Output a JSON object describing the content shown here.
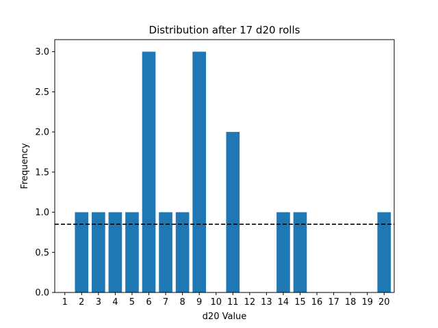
{
  "chart_data": {
    "type": "bar",
    "title": "Distribution after 17 d20 rolls",
    "xlabel": "d20 Value",
    "ylabel": "Frequency",
    "categories": [
      "1",
      "2",
      "3",
      "4",
      "5",
      "6",
      "7",
      "8",
      "9",
      "10",
      "11",
      "12",
      "13",
      "14",
      "15",
      "16",
      "17",
      "18",
      "19",
      "20"
    ],
    "values": [
      0,
      1,
      1,
      1,
      1,
      3,
      1,
      1,
      3,
      0,
      2,
      0,
      0,
      1,
      1,
      0,
      0,
      0,
      0,
      1
    ],
    "ylim": [
      0,
      3.15
    ],
    "yticks": [
      0.0,
      0.5,
      1.0,
      1.5,
      2.0,
      2.5,
      3.0
    ],
    "ytick_labels": [
      "0.0",
      "0.5",
      "1.0",
      "1.5",
      "2.0",
      "2.5",
      "3.0"
    ],
    "reference_line": {
      "y": 0.85,
      "style": "dashed",
      "color": "#000000"
    },
    "bar_color": "#1f77b4",
    "grid": false,
    "legend": "none"
  }
}
